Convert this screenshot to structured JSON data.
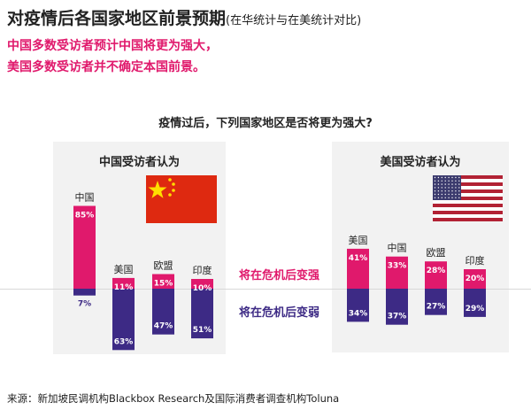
{
  "title": "对疫情后各国家地区前景预期",
  "title_note": "(在华统计与在美统计对比)",
  "subtitle": [
    "中国多数受访者预计中国将更为强大，",
    "美国多数受访者并不确定本国前景。"
  ],
  "question": "疫情过后，下列国家地区是否将更为强大?",
  "legend": {
    "stronger": "将在危机后变强",
    "weaker": "将在危机后变弱"
  },
  "colors": {
    "stronger": "#e0196c",
    "weaker": "#3d2a85",
    "panel": "#f2f2f2"
  },
  "source": "来源：新加坡民调机构Blackbox Research及国际消费者调查机构Toluna",
  "chart_data": [
    {
      "type": "bar",
      "title": "中国受访者认为",
      "flag": "china-flag",
      "categories": [
        "中国",
        "美国",
        "欧盟",
        "印度"
      ],
      "series": [
        {
          "name": "将在危机后变强",
          "values": [
            85,
            11,
            15,
            10
          ]
        },
        {
          "name": "将在危机后变弱",
          "values": [
            7,
            63,
            47,
            51
          ]
        }
      ]
    },
    {
      "type": "bar",
      "title": "美国受访者认为",
      "flag": "usa-flag",
      "categories": [
        "美国",
        "中国",
        "欧盟",
        "印度"
      ],
      "series": [
        {
          "name": "将在危机后变强",
          "values": [
            41,
            33,
            28,
            20
          ]
        },
        {
          "name": "将在危机后变弱",
          "values": [
            34,
            37,
            27,
            29
          ]
        }
      ]
    }
  ]
}
